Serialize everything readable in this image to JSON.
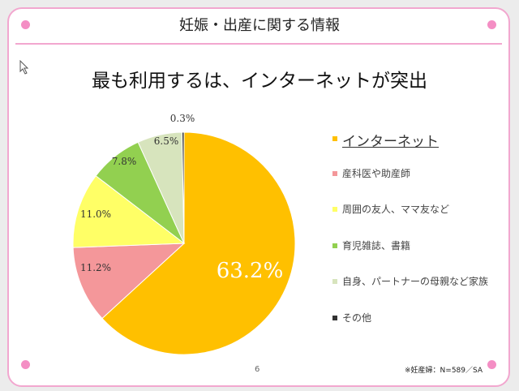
{
  "header": {
    "title": "妊娠・出産に関する情報"
  },
  "headline": "最も利用するは、インターネットが突出",
  "page_number": "6",
  "footnote": "※妊産婦：N=589／SA",
  "chart_data": {
    "type": "pie",
    "title": "最も利用するは、インターネットが突出",
    "start": "top, clockwise",
    "legend_position": "right",
    "slices": [
      {
        "label": "インターネット",
        "value": 63.2,
        "text": "63.2%",
        "color": "#FFC000"
      },
      {
        "label": "産科医や助産師",
        "value": 11.2,
        "text": "11.2%",
        "color": "#F4979A"
      },
      {
        "label": "周囲の友人、ママ友など",
        "value": 11.0,
        "text": "11.0%",
        "color": "#FFFF66"
      },
      {
        "label": "育児雑誌、書籍",
        "value": 7.8,
        "text": "7.8%",
        "color": "#92D050"
      },
      {
        "label": "自身、パートナーの母親など家族",
        "value": 6.5,
        "text": "6.5%",
        "color": "#D7E4BD"
      },
      {
        "label": "その他",
        "value": 0.3,
        "text": "0.3%",
        "color": "#333333"
      }
    ]
  }
}
